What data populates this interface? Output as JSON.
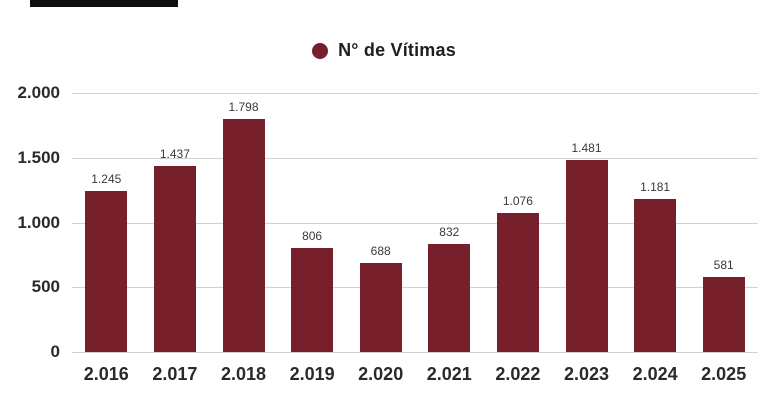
{
  "page": {
    "background": "#ffffff"
  },
  "legend": {
    "label": "N° de Vítimas",
    "marker_color": "#77202c"
  },
  "chart_data": {
    "type": "bar",
    "title": "",
    "legend_entries": [
      "N° de Vítimas"
    ],
    "legend_position": "top-center",
    "grid": true,
    "categories": [
      "2.016",
      "2.017",
      "2.018",
      "2.019",
      "2.020",
      "2.021",
      "2.022",
      "2.023",
      "2.024",
      "2.025"
    ],
    "values": [
      1245,
      1437,
      1798,
      806,
      688,
      832,
      1076,
      1481,
      1181,
      581
    ],
    "value_labels": [
      "1.245",
      "1.437",
      "1.798",
      "806",
      "688",
      "832",
      "1.076",
      "1.481",
      "1.181",
      "581"
    ],
    "ylim": [
      0,
      2000
    ],
    "yticks": [
      {
        "value": 0,
        "label": "0"
      },
      {
        "value": 500,
        "label": "500"
      },
      {
        "value": 1000,
        "label": "1.000"
      },
      {
        "value": 1500,
        "label": "1.500"
      },
      {
        "value": 2000,
        "label": "2.000"
      }
    ],
    "xlabel": "",
    "ylabel": "",
    "bar_color": "#77202c",
    "gridline_color": "#d2d2d2"
  }
}
